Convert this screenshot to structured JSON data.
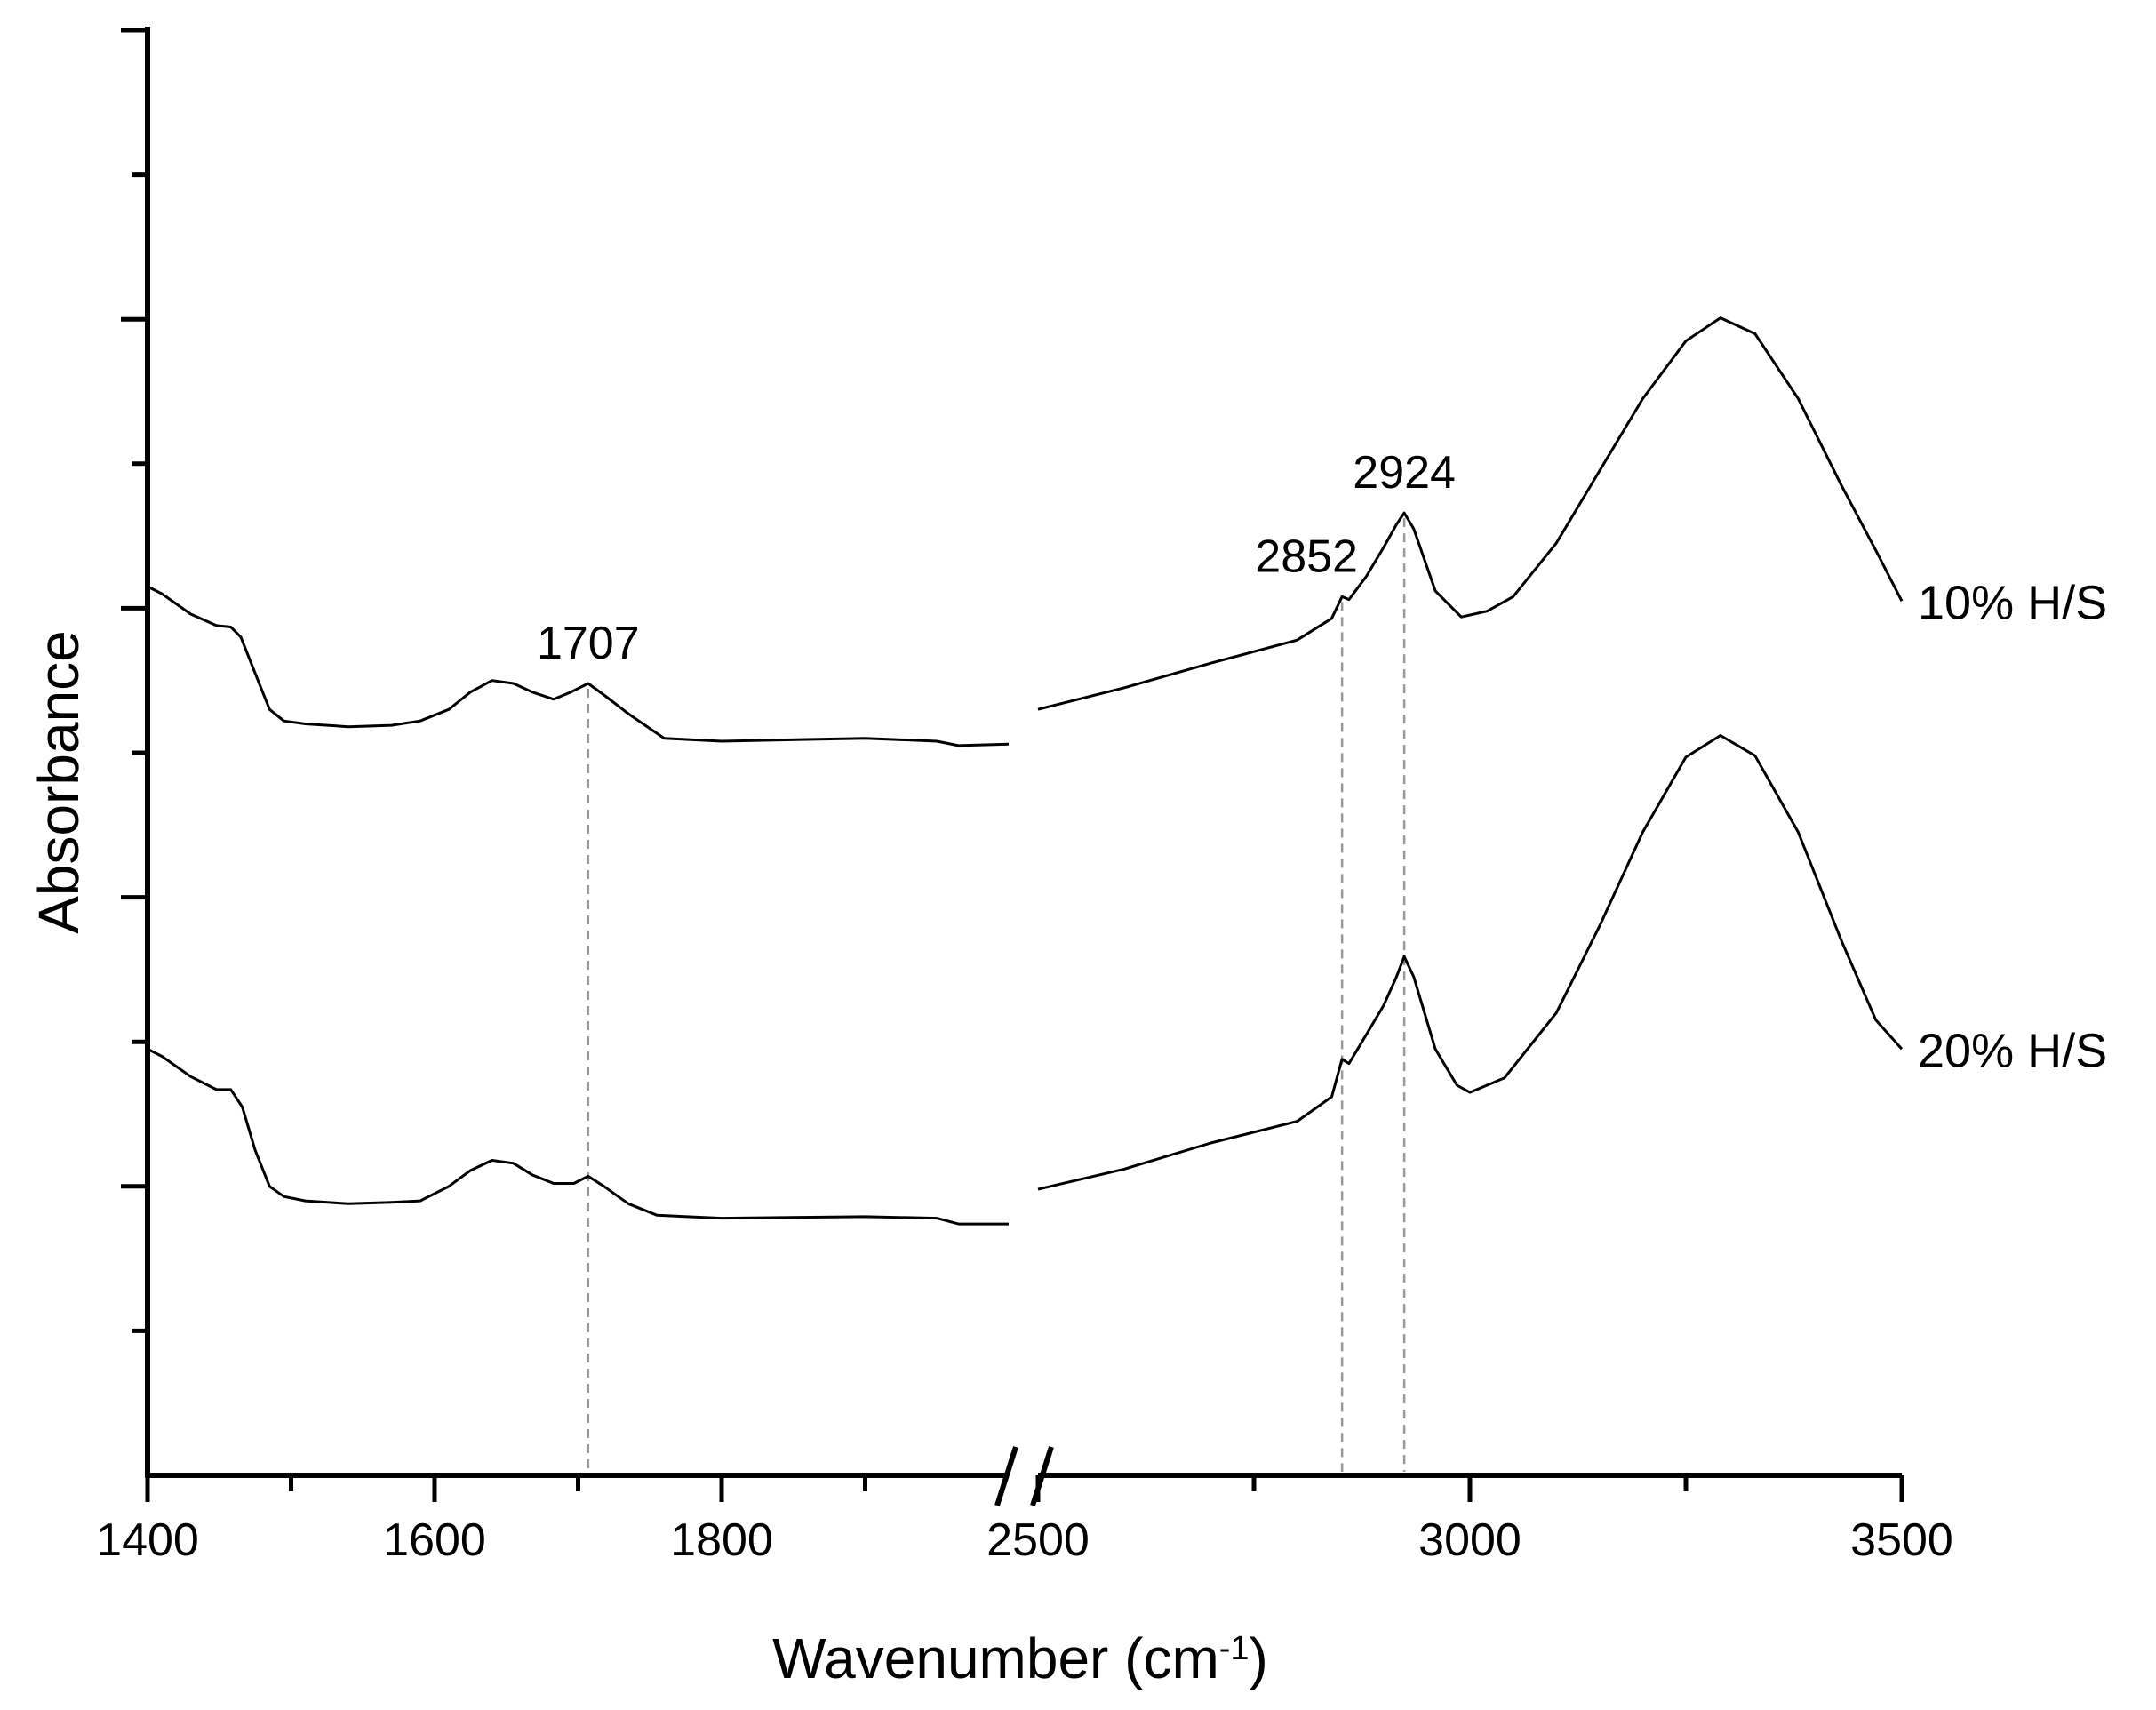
{
  "chart_data": {
    "type": "line",
    "xlabel": "Wavenumber (cm",
    "xlabel_sup": "-1",
    "xlabel_close": ")",
    "ylabel": "Absorbance",
    "x_segments": [
      {
        "range": [
          1400,
          2000
        ],
        "ticks": [
          1400,
          1600,
          1800
        ],
        "minor_ticks": [
          1500,
          1700,
          1900
        ]
      },
      {
        "range": [
          2500,
          3500
        ],
        "ticks": [
          2500,
          3000,
          3500
        ],
        "minor_ticks": [
          2750,
          3250
        ]
      }
    ],
    "axis_break": true,
    "y_ticks": 10,
    "y_labels_shown": false,
    "grid": false,
    "annotations": [
      {
        "text": "1707",
        "x": 1707
      },
      {
        "text": "2852",
        "x": 2852
      },
      {
        "text": "2924",
        "x": 2924
      }
    ],
    "series": [
      {
        "name": "10% H/S",
        "segment1": [
          [
            1400,
            4.15
          ],
          [
            1410,
            4.1
          ],
          [
            1430,
            3.96
          ],
          [
            1448,
            3.88
          ],
          [
            1458,
            3.87
          ],
          [
            1465,
            3.8
          ],
          [
            1475,
            3.55
          ],
          [
            1485,
            3.3
          ],
          [
            1495,
            3.22
          ],
          [
            1510,
            3.2
          ],
          [
            1540,
            3.18
          ],
          [
            1570,
            3.19
          ],
          [
            1590,
            3.22
          ],
          [
            1610,
            3.3
          ],
          [
            1625,
            3.42
          ],
          [
            1640,
            3.5
          ],
          [
            1655,
            3.48
          ],
          [
            1668,
            3.42
          ],
          [
            1683,
            3.37
          ],
          [
            1695,
            3.42
          ],
          [
            1707,
            3.48
          ],
          [
            1718,
            3.4
          ],
          [
            1735,
            3.27
          ],
          [
            1760,
            3.1
          ],
          [
            1800,
            3.08
          ],
          [
            1900,
            3.1
          ],
          [
            1950,
            3.08
          ],
          [
            1965,
            3.05
          ],
          [
            2000,
            3.06
          ]
        ],
        "segment2": [
          [
            2500,
            3.3
          ],
          [
            2600,
            3.45
          ],
          [
            2700,
            3.62
          ],
          [
            2800,
            3.78
          ],
          [
            2840,
            3.93
          ],
          [
            2852,
            4.08
          ],
          [
            2860,
            4.06
          ],
          [
            2880,
            4.22
          ],
          [
            2900,
            4.42
          ],
          [
            2915,
            4.58
          ],
          [
            2924,
            4.66
          ],
          [
            2935,
            4.55
          ],
          [
            2960,
            4.12
          ],
          [
            2990,
            3.94
          ],
          [
            3020,
            3.98
          ],
          [
            3050,
            4.08
          ],
          [
            3100,
            4.45
          ],
          [
            3150,
            4.95
          ],
          [
            3200,
            5.45
          ],
          [
            3250,
            5.85
          ],
          [
            3290,
            6.01
          ],
          [
            3330,
            5.9
          ],
          [
            3380,
            5.45
          ],
          [
            3430,
            4.85
          ],
          [
            3470,
            4.4
          ],
          [
            3500,
            4.05
          ]
        ]
      },
      {
        "name": "20% H/S",
        "segment1": [
          [
            1400,
            0.95
          ],
          [
            1410,
            0.9
          ],
          [
            1430,
            0.76
          ],
          [
            1448,
            0.67
          ],
          [
            1458,
            0.67
          ],
          [
            1466,
            0.55
          ],
          [
            1475,
            0.25
          ],
          [
            1485,
            0.0
          ],
          [
            1495,
            -0.07
          ],
          [
            1510,
            -0.1
          ],
          [
            1540,
            -0.12
          ],
          [
            1570,
            -0.11
          ],
          [
            1590,
            -0.1
          ],
          [
            1610,
            0.0
          ],
          [
            1625,
            0.11
          ],
          [
            1640,
            0.18
          ],
          [
            1655,
            0.16
          ],
          [
            1668,
            0.08
          ],
          [
            1683,
            0.02
          ],
          [
            1697,
            0.02
          ],
          [
            1707,
            0.07
          ],
          [
            1718,
            0.0
          ],
          [
            1735,
            -0.12
          ],
          [
            1755,
            -0.2
          ],
          [
            1800,
            -0.22
          ],
          [
            1900,
            -0.21
          ],
          [
            1950,
            -0.22
          ],
          [
            1965,
            -0.26
          ],
          [
            2000,
            -0.26
          ]
        ],
        "segment2": [
          [
            2500,
            -0.02
          ],
          [
            2600,
            0.12
          ],
          [
            2700,
            0.3
          ],
          [
            2800,
            0.45
          ],
          [
            2840,
            0.62
          ],
          [
            2852,
            0.88
          ],
          [
            2860,
            0.85
          ],
          [
            2880,
            1.05
          ],
          [
            2900,
            1.25
          ],
          [
            2915,
            1.45
          ],
          [
            2924,
            1.59
          ],
          [
            2935,
            1.45
          ],
          [
            2960,
            0.95
          ],
          [
            2985,
            0.7
          ],
          [
            3000,
            0.65
          ],
          [
            3040,
            0.75
          ],
          [
            3100,
            1.2
          ],
          [
            3150,
            1.8
          ],
          [
            3200,
            2.45
          ],
          [
            3250,
            2.97
          ],
          [
            3290,
            3.12
          ],
          [
            3330,
            2.98
          ],
          [
            3380,
            2.45
          ],
          [
            3430,
            1.7
          ],
          [
            3470,
            1.15
          ],
          [
            3500,
            0.95
          ]
        ]
      }
    ]
  }
}
